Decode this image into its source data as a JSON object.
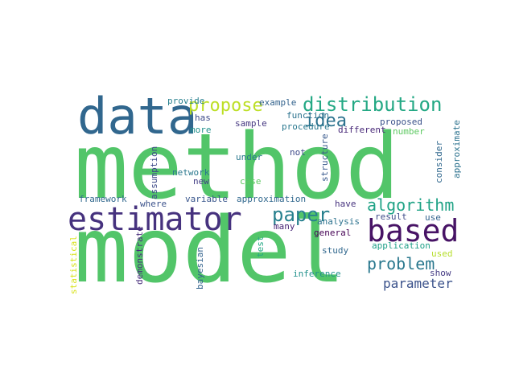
{
  "words": [
    {
      "text": "method",
      "color": "#52c569",
      "rot": 0
    },
    {
      "text": "model",
      "color": "#52c569",
      "rot": 0
    },
    {
      "text": "data",
      "color": "#31678e",
      "rot": 0
    },
    {
      "text": "estimator",
      "color": "#46327e",
      "rot": 0
    },
    {
      "text": "distribution",
      "color": "#23a884",
      "rot": 0
    },
    {
      "text": "based",
      "color": "#471365",
      "rot": 0
    },
    {
      "text": "propose",
      "color": "#bddf26",
      "rot": 0
    },
    {
      "text": "idea",
      "color": "#2c728e",
      "rot": 0
    },
    {
      "text": "paper",
      "color": "#27808e",
      "rot": 0
    },
    {
      "text": "algorithm",
      "color": "#20a386",
      "rot": 0
    },
    {
      "text": "problem",
      "color": "#2a788e",
      "rot": 0
    },
    {
      "text": "parameter",
      "color": "#3b528b",
      "rot": 0
    },
    {
      "text": "provide",
      "color": "#27808e",
      "rot": 0
    },
    {
      "text": "has",
      "color": "#3e4a89",
      "rot": 0
    },
    {
      "text": "more",
      "color": "#21918c",
      "rot": 0
    },
    {
      "text": "example",
      "color": "#33638d",
      "rot": 0
    },
    {
      "text": "function",
      "color": "#2c728e",
      "rot": 0
    },
    {
      "text": "proposed",
      "color": "#3b528b",
      "rot": 0
    },
    {
      "text": "sample",
      "color": "#453781",
      "rot": 0
    },
    {
      "text": "procedure",
      "color": "#2a788e",
      "rot": 0
    },
    {
      "text": "different",
      "color": "#482878",
      "rot": 0
    },
    {
      "text": "number",
      "color": "#5ec962",
      "rot": 0
    },
    {
      "text": "not",
      "color": "#3e4a89",
      "rot": 0
    },
    {
      "text": "under",
      "color": "#2a788e",
      "rot": 0
    },
    {
      "text": "network",
      "color": "#2a788e",
      "rot": 0
    },
    {
      "text": "new",
      "color": "#433e85",
      "rot": 0
    },
    {
      "text": "case",
      "color": "#5ec962",
      "rot": 0
    },
    {
      "text": "framework",
      "color": "#31688e",
      "rot": 0
    },
    {
      "text": "where",
      "color": "#3b528b",
      "rot": 0
    },
    {
      "text": "variable",
      "color": "#39568c",
      "rot": 0
    },
    {
      "text": "approximation",
      "color": "#31688e",
      "rot": 0
    },
    {
      "text": "have",
      "color": "#46327e",
      "rot": 0
    },
    {
      "text": "result",
      "color": "#3e4a89",
      "rot": 0
    },
    {
      "text": "use",
      "color": "#33638d",
      "rot": 0
    },
    {
      "text": "analysis",
      "color": "#2c728e",
      "rot": 0
    },
    {
      "text": "many",
      "color": "#482475",
      "rot": 0
    },
    {
      "text": "general",
      "color": "#440154",
      "rot": 0
    },
    {
      "text": "application",
      "color": "#1fa088",
      "rot": 0
    },
    {
      "text": "used",
      "color": "#b5de2b",
      "rot": 0
    },
    {
      "text": "study",
      "color": "#31688e",
      "rot": 0
    },
    {
      "text": "show",
      "color": "#443a83",
      "rot": 0
    },
    {
      "text": "inference",
      "color": "#21918c",
      "rot": 0
    },
    {
      "text": "bayesian",
      "color": "#33638d",
      "rot": 90
    },
    {
      "text": "statistical",
      "color": "#d8e219",
      "rot": 90
    },
    {
      "text": "demonstrate",
      "color": "#472d7b",
      "rot": 90
    },
    {
      "text": "assumption",
      "color": "#3e4a89",
      "rot": 90
    },
    {
      "text": "test",
      "color": "#23a884",
      "rot": 90
    },
    {
      "text": "structure",
      "color": "#38598c",
      "rot": 90
    },
    {
      "text": "consider",
      "color": "#31688e",
      "rot": 90
    },
    {
      "text": "approximate",
      "color": "#2c728e",
      "rot": 90
    }
  ]
}
